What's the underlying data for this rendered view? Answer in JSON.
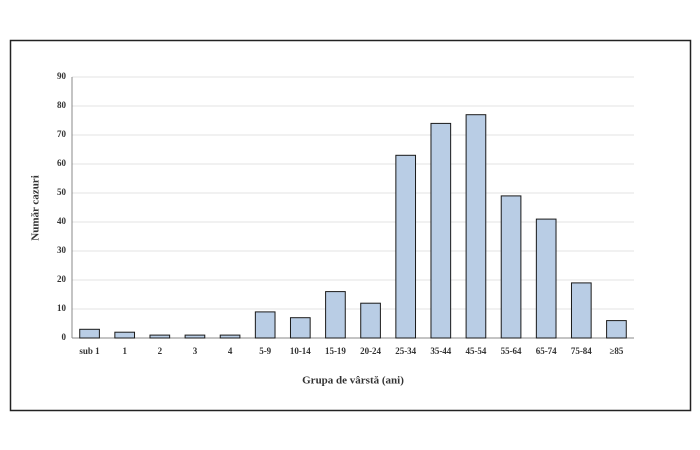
{
  "chart_data": {
    "type": "bar",
    "categories": [
      "sub 1",
      "1",
      "2",
      "3",
      "4",
      "5-9",
      "10-14",
      "15-19",
      "20-24",
      "25-34",
      "35-44",
      "45-54",
      "55-64",
      "65-74",
      "75-84",
      "≥85"
    ],
    "values": [
      3,
      2,
      1,
      1,
      1,
      9,
      7,
      16,
      12,
      63,
      74,
      77,
      49,
      41,
      19,
      6
    ],
    "color": "#b9cde5",
    "x_label": "Grupa  de vârstă (ani)",
    "y_label": "Număr cazuri",
    "ylim": [
      0,
      90
    ],
    "yticks": [
      0,
      10,
      20,
      30,
      40,
      50,
      60,
      70,
      80,
      90
    ],
    "grid": true
  }
}
